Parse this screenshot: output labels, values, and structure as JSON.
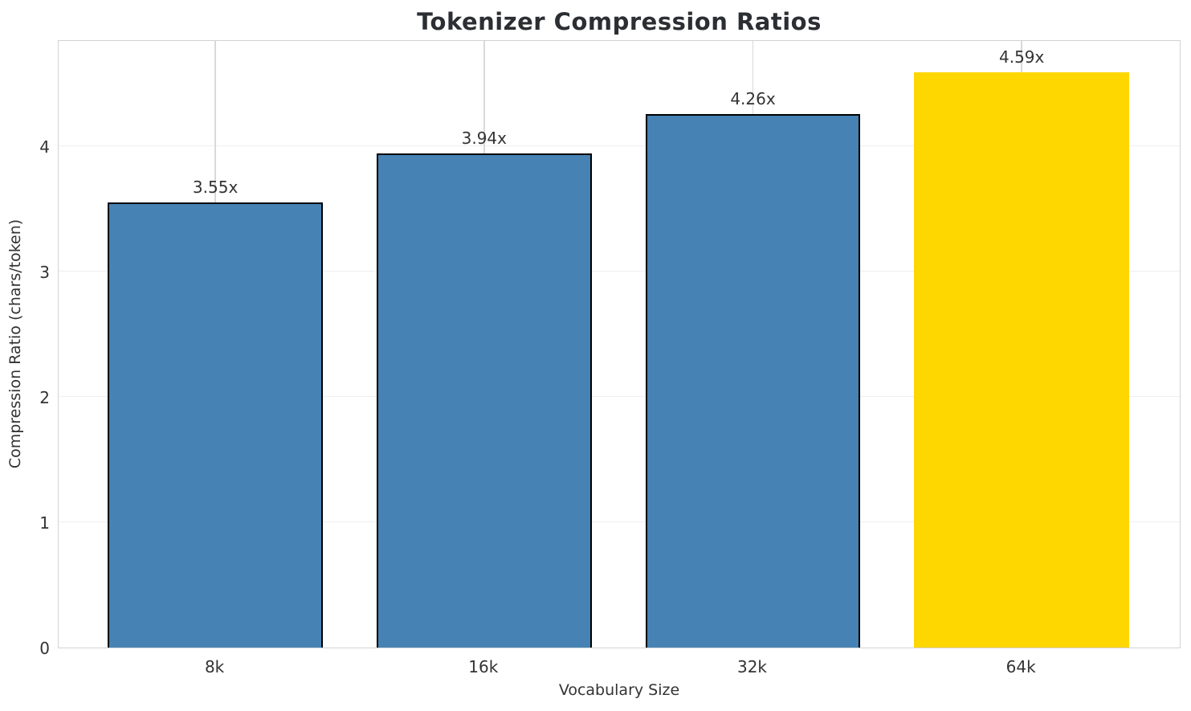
{
  "chart_data": {
    "type": "bar",
    "title": "Tokenizer Compression Ratios",
    "xlabel": "Vocabulary Size",
    "ylabel": "Compression Ratio (chars/token)",
    "categories": [
      "8k",
      "16k",
      "32k",
      "64k"
    ],
    "values": [
      3.55,
      3.94,
      4.26,
      4.59
    ],
    "bar_labels": [
      "3.55x",
      "3.94x",
      "4.26x",
      "4.59x"
    ],
    "bar_colors": [
      "#4682B4",
      "#4682B4",
      "#4682B4",
      "#FFD700"
    ],
    "bar_edge_colors": [
      "#000000",
      "#000000",
      "#000000",
      "#FFD700"
    ],
    "highlight_index": 3,
    "yticks": [
      0,
      1,
      2,
      3,
      4
    ],
    "ylim": [
      0,
      4.853
    ],
    "xlim": [
      -0.583,
      3.594
    ],
    "bar_width": 0.8,
    "grid": true,
    "legend": "none",
    "colors": {
      "default_bar": "#4682B4",
      "highlight_bar": "#FFD700",
      "bar_edge": "#000000",
      "grid_h": "#efefef",
      "grid_v": "#d9d9d9",
      "spine": "#d2d2d2",
      "text": "#333333",
      "title_text": "#2b2e33",
      "background": "#ffffff"
    }
  }
}
